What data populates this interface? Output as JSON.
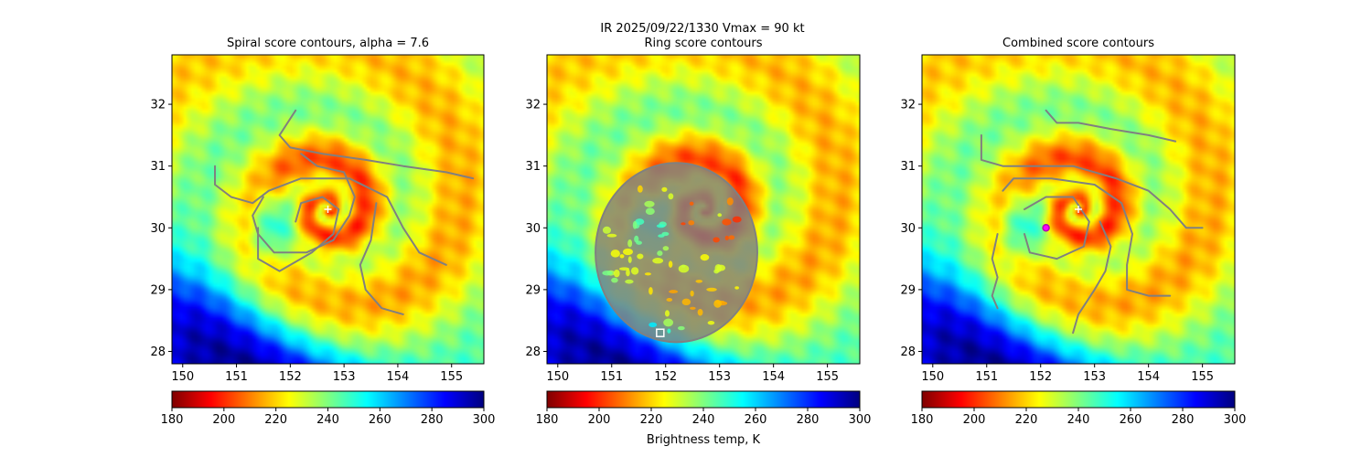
{
  "figure": {
    "title_line": "IR  2025/09/22/1330    Vmax = 90 kt",
    "colorbar_label": "Brightness temp, K"
  },
  "colormap": {
    "name": "jet_r",
    "stops": [
      "#7f0000",
      "#ff0000",
      "#ff7f00",
      "#ffff00",
      "#7fff7f",
      "#00ffff",
      "#007fff",
      "#0000ff",
      "#00007f"
    ]
  },
  "colors": {
    "contour": "#808080",
    "center_marker": "#ffffff",
    "combined_center_ring": "#b000b0",
    "combined_center_fill": "#ff00ff",
    "square_marker": "#ffffff"
  },
  "chart_data": [
    {
      "type": "heatmap",
      "title": "Spiral score contours, alpha =  7.6",
      "xlim": [
        149.8,
        155.6
      ],
      "ylim": [
        27.8,
        32.8
      ],
      "xticks": [
        150,
        151,
        152,
        153,
        154,
        155
      ],
      "yticks": [
        28,
        29,
        30,
        31,
        32
      ],
      "colorbar": {
        "min": 180,
        "max": 300,
        "ticks": [
          180,
          200,
          220,
          240,
          260,
          280,
          300
        ]
      },
      "center_marker": {
        "lon": 152.7,
        "lat": 30.3,
        "symbol": "+"
      },
      "contours": [
        [
          [
            152.1,
            31.9
          ],
          [
            151.8,
            31.5
          ],
          [
            152.0,
            31.3
          ],
          [
            152.6,
            31.2
          ],
          [
            153.4,
            31.1
          ],
          [
            154.1,
            31.0
          ],
          [
            154.9,
            30.9
          ],
          [
            155.4,
            30.8
          ]
        ],
        [
          [
            150.6,
            31.0
          ],
          [
            150.6,
            30.7
          ],
          [
            150.9,
            30.5
          ],
          [
            151.3,
            30.4
          ],
          [
            151.6,
            30.6
          ],
          [
            152.2,
            30.8
          ],
          [
            153.1,
            30.8
          ],
          [
            153.8,
            30.5
          ],
          [
            154.1,
            30.0
          ],
          [
            154.4,
            29.6
          ],
          [
            154.9,
            29.4
          ]
        ],
        [
          [
            151.5,
            30.5
          ],
          [
            151.3,
            30.2
          ],
          [
            151.4,
            29.9
          ],
          [
            151.7,
            29.6
          ],
          [
            152.3,
            29.6
          ],
          [
            152.8,
            29.8
          ],
          [
            153.1,
            30.2
          ],
          [
            153.2,
            30.5
          ],
          [
            153.0,
            30.9
          ],
          [
            152.5,
            31.0
          ],
          [
            152.2,
            31.2
          ]
        ],
        [
          [
            152.1,
            30.1
          ],
          [
            152.2,
            30.4
          ],
          [
            152.6,
            30.5
          ],
          [
            152.9,
            30.3
          ],
          [
            152.8,
            29.9
          ],
          [
            152.4,
            29.6
          ],
          [
            151.8,
            29.3
          ],
          [
            151.4,
            29.5
          ],
          [
            151.4,
            30.0
          ]
        ],
        [
          [
            153.6,
            30.4
          ],
          [
            153.5,
            29.8
          ],
          [
            153.3,
            29.4
          ],
          [
            153.4,
            29.0
          ],
          [
            153.7,
            28.7
          ],
          [
            154.1,
            28.6
          ]
        ]
      ]
    },
    {
      "type": "heatmap",
      "title": "Ring score contours",
      "xlim": [
        149.8,
        155.6
      ],
      "ylim": [
        27.8,
        32.8
      ],
      "xticks": [
        150,
        151,
        152,
        153,
        154,
        155
      ],
      "yticks": [
        28,
        29,
        30,
        31,
        32
      ],
      "colorbar": {
        "min": 180,
        "max": 300,
        "ticks": [
          180,
          200,
          220,
          240,
          260,
          280,
          300
        ]
      },
      "ring_region": {
        "lon": 152.2,
        "lat": 29.6,
        "r_lon": 1.5,
        "r_lat": 1.45
      },
      "square_marker": {
        "lon": 151.9,
        "lat": 28.3,
        "symbol": "square"
      },
      "contours": []
    },
    {
      "type": "heatmap",
      "title": "Combined score contours",
      "xlim": [
        149.8,
        155.6
      ],
      "ylim": [
        27.8,
        32.8
      ],
      "xticks": [
        150,
        151,
        152,
        153,
        154,
        155
      ],
      "yticks": [
        28,
        29,
        30,
        31,
        32
      ],
      "colorbar": {
        "min": 180,
        "max": 300,
        "ticks": [
          180,
          200,
          220,
          240,
          260,
          280,
          300
        ]
      },
      "center_marker": {
        "lon": 152.7,
        "lat": 30.3,
        "symbol": "+"
      },
      "combined_center": {
        "lon": 152.1,
        "lat": 30.0,
        "symbol": "circle"
      },
      "contours": [
        [
          [
            152.1,
            31.9
          ],
          [
            152.3,
            31.7
          ],
          [
            152.7,
            31.7
          ],
          [
            153.3,
            31.6
          ],
          [
            154.0,
            31.5
          ],
          [
            154.5,
            31.4
          ]
        ],
        [
          [
            150.9,
            31.5
          ],
          [
            150.9,
            31.1
          ],
          [
            151.3,
            31.0
          ],
          [
            151.9,
            31.0
          ],
          [
            152.6,
            31.0
          ],
          [
            153.4,
            30.8
          ],
          [
            154.0,
            30.6
          ],
          [
            154.4,
            30.3
          ],
          [
            154.7,
            30.0
          ],
          [
            155.0,
            30.0
          ]
        ],
        [
          [
            151.3,
            30.6
          ],
          [
            151.5,
            30.8
          ],
          [
            152.2,
            30.8
          ],
          [
            153.0,
            30.7
          ],
          [
            153.5,
            30.4
          ],
          [
            153.7,
            29.9
          ],
          [
            153.6,
            29.4
          ],
          [
            153.6,
            29.0
          ],
          [
            154.0,
            28.9
          ],
          [
            154.4,
            28.9
          ]
        ],
        [
          [
            151.7,
            30.3
          ],
          [
            152.1,
            30.5
          ],
          [
            152.6,
            30.5
          ],
          [
            152.9,
            30.1
          ],
          [
            152.8,
            29.7
          ],
          [
            152.3,
            29.5
          ],
          [
            151.8,
            29.6
          ],
          [
            151.7,
            29.9
          ]
        ],
        [
          [
            151.2,
            29.9
          ],
          [
            151.1,
            29.5
          ],
          [
            151.2,
            29.2
          ],
          [
            151.1,
            28.9
          ],
          [
            151.2,
            28.7
          ]
        ],
        [
          [
            153.1,
            30.1
          ],
          [
            153.3,
            29.7
          ],
          [
            153.2,
            29.3
          ],
          [
            153.0,
            29.0
          ],
          [
            152.7,
            28.6
          ],
          [
            152.6,
            28.3
          ]
        ]
      ]
    }
  ]
}
